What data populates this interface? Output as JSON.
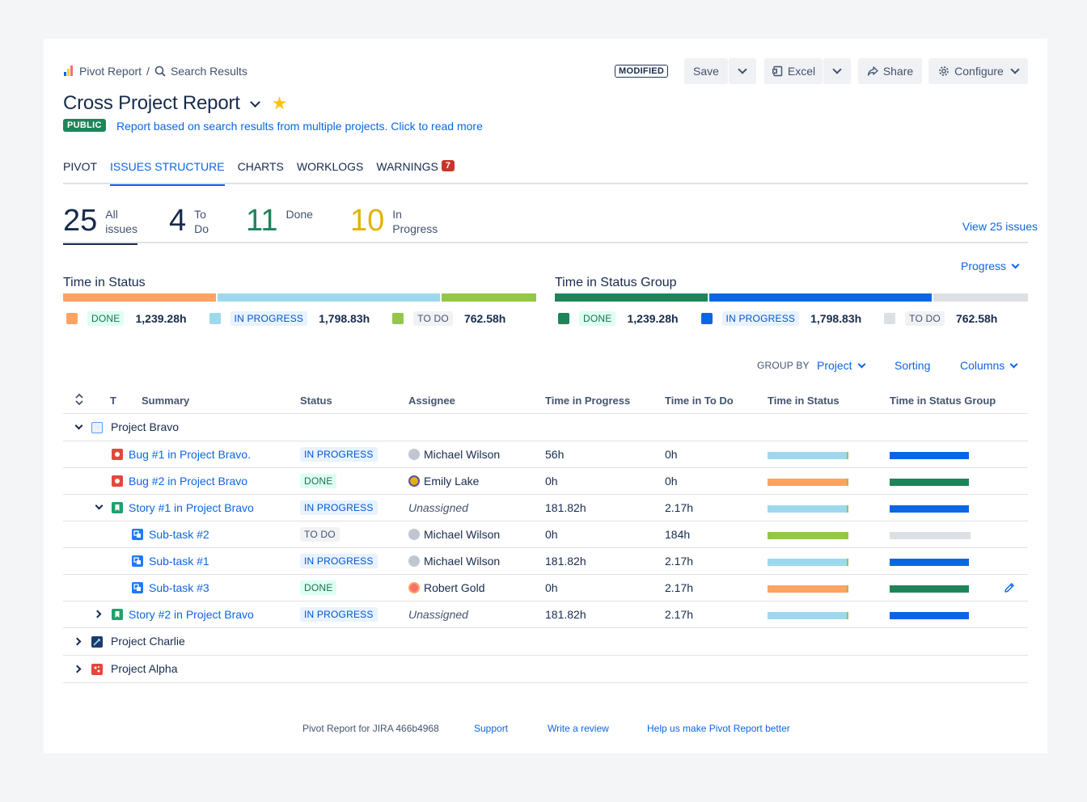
{
  "breadcrumb": {
    "root": "Pivot Report",
    "separator": "/",
    "current": "Search Results"
  },
  "header": {
    "modified": "MODIFIED",
    "save": "Save",
    "excel": "Excel",
    "share": "Share",
    "configure": "Configure"
  },
  "report": {
    "title": "Cross Project Report",
    "visibility": "PUBLIC",
    "description": "Report based on search results from multiple projects. Click to read more",
    "starred": true
  },
  "tabs": [
    {
      "label": "PIVOT"
    },
    {
      "label": "ISSUES STRUCTURE",
      "active": true
    },
    {
      "label": "CHARTS"
    },
    {
      "label": "WORKLOGS"
    },
    {
      "label": "WARNINGS",
      "badge": "7"
    }
  ],
  "counters": [
    {
      "num": "25",
      "l1": "All",
      "l2": "issues",
      "color": "#172b4d"
    },
    {
      "num": "4",
      "l1": "To",
      "l2": "Do",
      "color": "#172b4d"
    },
    {
      "num": "11",
      "l1": "Done",
      "l2": "",
      "color": "#1f845a"
    },
    {
      "num": "10",
      "l1": "In",
      "l2": "Progress",
      "color": "#e2b203"
    }
  ],
  "view_issues": "View 25 issues",
  "progress_dropdown": "Progress",
  "time_in_status": {
    "title": "Time in Status",
    "items": [
      {
        "status": "DONE",
        "hours": "1,239.28h",
        "color": "#fea362",
        "value": 1239.28
      },
      {
        "status": "IN PROGRESS",
        "hours": "1,798.83h",
        "color": "#9dd9ee",
        "value": 1798.83
      },
      {
        "status": "TO DO",
        "hours": "762.58h",
        "color": "#94c748",
        "value": 762.58
      }
    ]
  },
  "time_in_status_group": {
    "title": "Time in Status Group",
    "items": [
      {
        "status": "DONE",
        "hours": "1,239.28h",
        "color": "#1f845a",
        "value": 1239.28
      },
      {
        "status": "IN PROGRESS",
        "hours": "1,798.83h",
        "color": "#0c66e4",
        "value": 1798.83
      },
      {
        "status": "TO DO",
        "hours": "762.58h",
        "color": "#dcdfe4",
        "value": 762.58
      }
    ]
  },
  "toolbar": {
    "group_by_label": "GROUP BY",
    "group_by_value": "Project",
    "sorting": "Sorting",
    "columns": "Columns"
  },
  "table": {
    "headers": {
      "type": "T",
      "summary": "Summary",
      "status": "Status",
      "assignee": "Assignee",
      "time_in_progress": "Time in Progress",
      "time_in_todo": "Time in To Do",
      "time_in_status": "Time in Status",
      "time_in_status_group": "Time in Status Group"
    },
    "projects": [
      {
        "name": "Project Bravo",
        "expanded": true
      },
      {
        "name": "Project Charlie",
        "expanded": false
      },
      {
        "name": "Project Alpha",
        "expanded": false
      }
    ],
    "rows": [
      {
        "summary": "Bug #1 in Project Bravo.",
        "status": "IN PROGRESS",
        "assignee": "Michael Wilson",
        "tip": "56h",
        "ttd": "0h"
      },
      {
        "summary": "Bug #2 in Project Bravo",
        "status": "DONE",
        "assignee": "Emily Lake",
        "tip": "0h",
        "ttd": "0h"
      },
      {
        "summary": "Story #1 in Project Bravo",
        "status": "IN PROGRESS",
        "assignee": "Unassigned",
        "tip": "181.82h",
        "ttd": "2.17h"
      },
      {
        "summary": "Sub-task #2",
        "status": "TO DO",
        "assignee": "Michael Wilson",
        "tip": "0h",
        "ttd": "184h"
      },
      {
        "summary": "Sub-task #1",
        "status": "IN PROGRESS",
        "assignee": "Michael Wilson",
        "tip": "181.82h",
        "ttd": "2.17h"
      },
      {
        "summary": "Sub-task #3",
        "status": "DONE",
        "assignee": "Robert Gold",
        "tip": "0h",
        "ttd": "2.17h"
      },
      {
        "summary": "Story #2 in Project Bravo",
        "status": "IN PROGRESS",
        "assignee": "Unassigned",
        "tip": "181.82h",
        "ttd": "2.17h"
      }
    ]
  },
  "footer": {
    "version": "Pivot Report for JIRA 466b4968",
    "support": "Support",
    "review": "Write a review",
    "help": "Help us make Pivot Report better"
  }
}
